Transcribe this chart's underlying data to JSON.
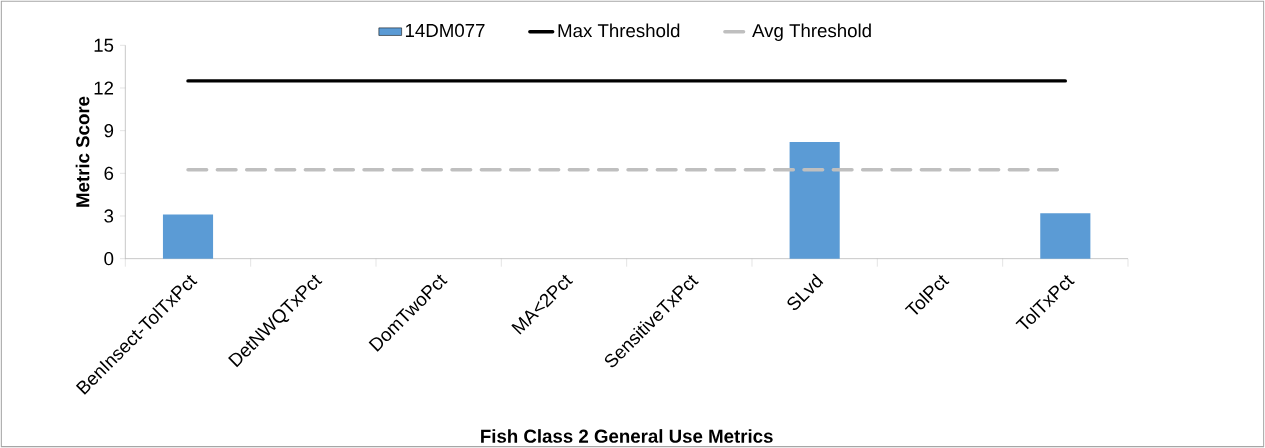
{
  "chart_data": {
    "type": "bar",
    "xlabel": "Fish Class 2 General Use Metrics",
    "ylabel": "Metric Score",
    "categories": [
      "BenInsect-TolTxPct",
      "DetNWQTxPct",
      "DomTwoPct",
      "MA<2Pct",
      "SensitiveTxPct",
      "SLvd",
      "TolPct",
      "TolTxPct"
    ],
    "series": [
      {
        "name": "14DM077",
        "color": "#5b9bd5",
        "values": [
          3.1,
          0,
          0,
          0,
          0,
          8.2,
          0,
          3.2
        ]
      },
      {
        "name": "Max Threshold",
        "type": "line",
        "color": "#000000",
        "line_style": "solid",
        "values": [
          12.5,
          12.5,
          12.5,
          12.5,
          12.5,
          12.5,
          12.5,
          12.5
        ]
      },
      {
        "name": "Avg Threshold",
        "type": "line",
        "color": "#bfbfbf",
        "line_style": "dashed",
        "values": [
          6.25,
          6.25,
          6.25,
          6.25,
          6.25,
          6.25,
          6.25,
          6.25
        ]
      }
    ],
    "ylim": [
      0,
      15
    ],
    "yticks": [
      0,
      3,
      6,
      9,
      12,
      15
    ],
    "grid": false,
    "legend": "top",
    "marker": "none"
  }
}
